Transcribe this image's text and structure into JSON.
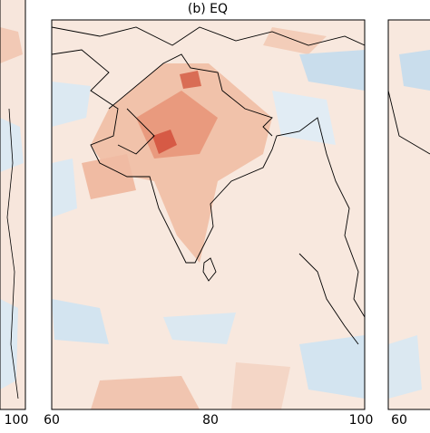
{
  "panels": [
    {
      "xticks": [
        "100"
      ]
    },
    {
      "title": "(b) EQ",
      "xticks": [
        "60",
        "80",
        "100"
      ]
    },
    {
      "xticks": [
        "60"
      ]
    }
  ]
}
